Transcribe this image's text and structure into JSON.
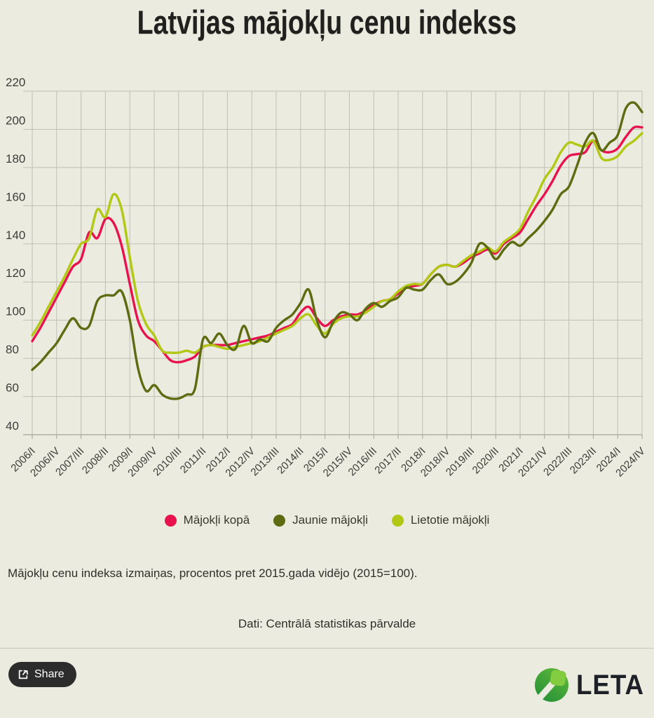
{
  "title": "Latvijas mājokļu cenu indekss",
  "chart_data": {
    "type": "line",
    "title": "Latvijas mājokļu cenu indekss",
    "ylim": [
      40,
      220
    ],
    "y_ticks": [
      220,
      200,
      180,
      160,
      140,
      120,
      100,
      80,
      60,
      40
    ],
    "x_ticks": [
      "2006/I",
      "2006/IV",
      "2007/III",
      "2008/II",
      "2009/I",
      "2009/IV",
      "2010/III",
      "2011/II",
      "2012/I",
      "2012/IV",
      "2013/III",
      "2014/II",
      "2015/I",
      "2015/IV",
      "2016/III",
      "2017/II",
      "2018/I",
      "2018/IV",
      "2019/III",
      "2020/II",
      "2021/I",
      "2021/IV",
      "2022/III",
      "2023/II",
      "2024/I",
      "2024/IV"
    ],
    "x_unit": "quarter",
    "grid": true,
    "legend_position": "bottom",
    "series": [
      {
        "name": "Mājokļi kopā",
        "color": "#e8124f",
        "values": [
          89,
          96,
          104,
          112,
          120,
          128,
          132,
          146,
          143,
          153,
          151,
          139,
          119,
          100,
          92,
          89,
          84,
          79,
          78,
          79,
          81,
          86,
          87,
          87,
          87,
          88,
          89,
          90,
          91,
          92,
          94,
          96,
          98,
          104,
          107,
          101,
          97,
          100,
          102,
          103,
          103,
          105,
          108,
          110,
          111,
          114,
          117,
          118,
          119,
          124,
          128,
          129,
          128,
          130,
          133,
          135,
          137,
          135,
          140,
          143,
          146,
          153,
          160,
          166,
          173,
          181,
          186,
          187,
          188,
          194,
          189,
          188,
          190,
          196,
          201,
          201
        ]
      },
      {
        "name": "Jaunie mājokļi",
        "color": "#5d6c11",
        "values": [
          74,
          78,
          83,
          88,
          95,
          101,
          96,
          97,
          110,
          113,
          113,
          115,
          100,
          75,
          63,
          66,
          61,
          59,
          59,
          61,
          64,
          90,
          88,
          93,
          87,
          85,
          97,
          88,
          90,
          89,
          96,
          100,
          103,
          109,
          116,
          100,
          91,
          99,
          104,
          103,
          100,
          106,
          109,
          107,
          110,
          112,
          117,
          116,
          116,
          121,
          124,
          119,
          120,
          124,
          130,
          140,
          138,
          132,
          137,
          141,
          139,
          143,
          147,
          152,
          158,
          166,
          170,
          181,
          193,
          198,
          189,
          193,
          197,
          211,
          214,
          209
        ]
      },
      {
        "name": "Lietotie mājokļi",
        "color": "#b1c814",
        "values": [
          92,
          99,
          107,
          115,
          123,
          132,
          140,
          143,
          158,
          154,
          166,
          158,
          133,
          110,
          98,
          92,
          84,
          83,
          83,
          84,
          83,
          86,
          87,
          86,
          85,
          86,
          87,
          88,
          89,
          91,
          93,
          95,
          97,
          101,
          103,
          97,
          93,
          98,
          101,
          102,
          102,
          104,
          107,
          110,
          111,
          115,
          118,
          119,
          119,
          124,
          128,
          129,
          128,
          131,
          134,
          136,
          138,
          136,
          141,
          144,
          148,
          157,
          165,
          174,
          180,
          188,
          193,
          192,
          191,
          194,
          185,
          184,
          186,
          191,
          194,
          198
        ]
      }
    ]
  },
  "notes": {
    "description": "Mājokļu cenu indeksa izmaiņas, procentos pret 2015.gada vidējo (2015=100).",
    "source": "Dati: Centrālā statistikas pārvalde"
  },
  "footer": {
    "share_label": "Share",
    "logo_text": "LETA"
  },
  "icons": {
    "share": "box-arrow-export",
    "logo": "leta-leaf"
  },
  "colors": {
    "background": "#ecebdf",
    "grid": "#bfbfb2",
    "baseline": "#a3a396",
    "axis_text": "#3c3c3a",
    "title_text": "#20211f",
    "share_button_bg": "#2c2c2c",
    "leta_green_dark": "#23913c",
    "leta_green_light": "#84cc3f"
  }
}
